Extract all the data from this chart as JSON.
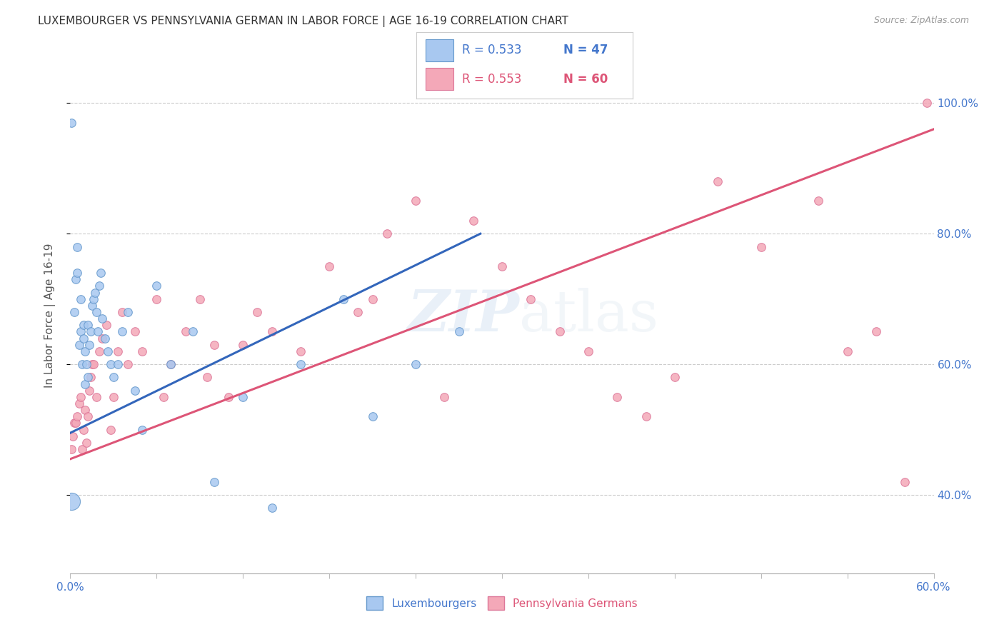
{
  "title": "LUXEMBOURGER VS PENNSYLVANIA GERMAN IN LABOR FORCE | AGE 16-19 CORRELATION CHART",
  "source": "Source: ZipAtlas.com",
  "ylabel": "In Labor Force | Age 16-19",
  "ytick_labels": [
    "40.0%",
    "60.0%",
    "80.0%",
    "100.0%"
  ],
  "ytick_values": [
    0.4,
    0.6,
    0.8,
    1.0
  ],
  "xmin": 0.0,
  "xmax": 0.6,
  "ymin": 0.28,
  "ymax": 1.07,
  "legend_r_blue": "R = 0.533",
  "legend_n_blue": "N = 47",
  "legend_r_pink": "R = 0.553",
  "legend_n_pink": "N = 60",
  "color_blue_fill": "#A8C8F0",
  "color_pink_fill": "#F4A8B8",
  "color_blue_edge": "#6699CC",
  "color_pink_edge": "#DD7799",
  "color_blue_line": "#3366BB",
  "color_pink_line": "#DD5577",
  "color_blue_text": "#4477CC",
  "color_pink_text": "#DD5577",
  "blue_trend_x0": 0.0,
  "blue_trend_y0": 0.495,
  "blue_trend_x1": 0.285,
  "blue_trend_y1": 0.8,
  "pink_trend_x0": 0.0,
  "pink_trend_y0": 0.455,
  "pink_trend_x1": 0.6,
  "pink_trend_y1": 0.96,
  "blue_x": [
    0.001,
    0.003,
    0.004,
    0.005,
    0.005,
    0.006,
    0.007,
    0.007,
    0.008,
    0.009,
    0.009,
    0.01,
    0.01,
    0.011,
    0.012,
    0.012,
    0.013,
    0.014,
    0.015,
    0.016,
    0.017,
    0.018,
    0.019,
    0.02,
    0.021,
    0.022,
    0.024,
    0.026,
    0.028,
    0.03,
    0.033,
    0.036,
    0.04,
    0.045,
    0.05,
    0.06,
    0.07,
    0.085,
    0.1,
    0.12,
    0.14,
    0.16,
    0.19,
    0.21,
    0.24,
    0.27,
    0.001
  ],
  "blue_y": [
    0.97,
    0.68,
    0.73,
    0.74,
    0.78,
    0.63,
    0.65,
    0.7,
    0.6,
    0.64,
    0.66,
    0.57,
    0.62,
    0.6,
    0.58,
    0.66,
    0.63,
    0.65,
    0.69,
    0.7,
    0.71,
    0.68,
    0.65,
    0.72,
    0.74,
    0.67,
    0.64,
    0.62,
    0.6,
    0.58,
    0.6,
    0.65,
    0.68,
    0.56,
    0.5,
    0.72,
    0.6,
    0.65,
    0.42,
    0.55,
    0.38,
    0.6,
    0.7,
    0.52,
    0.6,
    0.65,
    0.39
  ],
  "blue_sizes": [
    60,
    60,
    60,
    60,
    60,
    60,
    60,
    60,
    60,
    60,
    60,
    60,
    60,
    60,
    60,
    60,
    60,
    60,
    60,
    60,
    60,
    60,
    60,
    60,
    60,
    60,
    60,
    60,
    60,
    60,
    60,
    60,
    60,
    60,
    60,
    60,
    60,
    60,
    60,
    60,
    60,
    60,
    60,
    60,
    60,
    60,
    300
  ],
  "pink_x": [
    0.001,
    0.002,
    0.003,
    0.004,
    0.005,
    0.006,
    0.007,
    0.008,
    0.009,
    0.01,
    0.011,
    0.012,
    0.013,
    0.014,
    0.015,
    0.016,
    0.018,
    0.02,
    0.022,
    0.025,
    0.028,
    0.03,
    0.033,
    0.036,
    0.04,
    0.045,
    0.05,
    0.06,
    0.065,
    0.07,
    0.08,
    0.09,
    0.095,
    0.1,
    0.11,
    0.12,
    0.13,
    0.14,
    0.16,
    0.18,
    0.2,
    0.21,
    0.22,
    0.24,
    0.26,
    0.28,
    0.3,
    0.32,
    0.34,
    0.36,
    0.38,
    0.4,
    0.42,
    0.45,
    0.48,
    0.52,
    0.54,
    0.56,
    0.58,
    0.595
  ],
  "pink_y": [
    0.47,
    0.49,
    0.51,
    0.51,
    0.52,
    0.54,
    0.55,
    0.47,
    0.5,
    0.53,
    0.48,
    0.52,
    0.56,
    0.58,
    0.6,
    0.6,
    0.55,
    0.62,
    0.64,
    0.66,
    0.5,
    0.55,
    0.62,
    0.68,
    0.6,
    0.65,
    0.62,
    0.7,
    0.55,
    0.6,
    0.65,
    0.7,
    0.58,
    0.63,
    0.55,
    0.63,
    0.68,
    0.65,
    0.62,
    0.75,
    0.68,
    0.7,
    0.8,
    0.85,
    0.55,
    0.82,
    0.75,
    0.7,
    0.65,
    0.62,
    0.55,
    0.52,
    0.58,
    0.88,
    0.78,
    0.85,
    0.62,
    0.65,
    0.42,
    1.0
  ]
}
